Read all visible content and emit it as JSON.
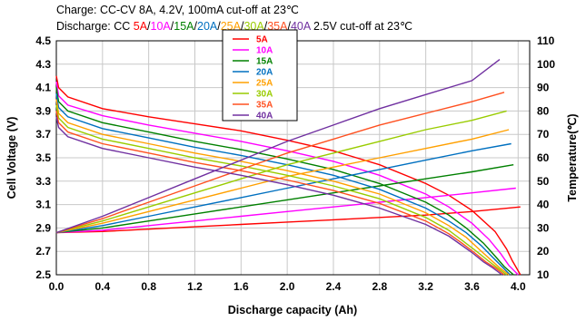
{
  "chart_data": {
    "type": "line",
    "title_line1": "Charge: CC-CV 8A, 4.2V, 100mA cut-off at 23℃",
    "title_line2_prefix": "Discharge: CC ",
    "title_line2_suffix": " 2.5V cut-off at 23℃",
    "xlabel": "Discharge capacity (Ah)",
    "ylabel_left": "Cell Voltage (V)",
    "ylabel_right": "Temperature(℃)",
    "xlim": [
      0,
      4.1
    ],
    "ylim_left": [
      2.5,
      4.5
    ],
    "ylim_right": [
      10,
      110
    ],
    "x_ticks": [
      "0.0",
      "0.4",
      "0.8",
      "1.2",
      "1.6",
      "2.0",
      "2.4",
      "2.8",
      "3.2",
      "3.6",
      "4.0"
    ],
    "y_left_ticks": [
      "2.5",
      "2.7",
      "2.9",
      "3.1",
      "3.3",
      "3.5",
      "3.7",
      "3.9",
      "4.1",
      "4.3",
      "4.5"
    ],
    "y_right_ticks": [
      "10",
      "20",
      "30",
      "40",
      "50",
      "60",
      "70",
      "80",
      "90",
      "100",
      "110"
    ],
    "grid": true,
    "legend_position": "top-center",
    "series": [
      {
        "name": "5A",
        "color": "#ff0000",
        "voltage_x": [
          0,
          0.02,
          0.1,
          0.4,
          0.8,
          1.2,
          1.6,
          2.0,
          2.4,
          2.8,
          3.2,
          3.4,
          3.6,
          3.8,
          3.9,
          3.95,
          4.02
        ],
        "voltage_y": [
          4.2,
          4.1,
          4.02,
          3.92,
          3.85,
          3.79,
          3.73,
          3.65,
          3.56,
          3.44,
          3.28,
          3.18,
          3.05,
          2.87,
          2.72,
          2.62,
          2.5
        ],
        "temp_x": [
          0,
          0.4,
          0.8,
          1.2,
          1.6,
          2.0,
          2.4,
          2.8,
          3.2,
          3.6,
          4.02
        ],
        "temp_y": [
          28,
          28.5,
          29.5,
          30.5,
          31.5,
          32.5,
          33.5,
          34.5,
          35.5,
          37,
          39
        ]
      },
      {
        "name": "10A",
        "color": "#ff00ff",
        "voltage_x": [
          0,
          0.02,
          0.1,
          0.4,
          0.8,
          1.2,
          1.6,
          2.0,
          2.4,
          2.8,
          3.2,
          3.4,
          3.6,
          3.75,
          3.85,
          3.92,
          4.0
        ],
        "voltage_y": [
          4.15,
          4.03,
          3.95,
          3.86,
          3.78,
          3.71,
          3.64,
          3.56,
          3.47,
          3.35,
          3.19,
          3.08,
          2.94,
          2.8,
          2.68,
          2.58,
          2.5
        ],
        "temp_x": [
          0,
          0.4,
          0.8,
          1.2,
          1.6,
          2.0,
          2.4,
          2.8,
          3.2,
          3.6,
          3.98
        ],
        "temp_y": [
          28,
          29,
          31,
          33,
          35,
          37,
          39,
          41,
          43,
          45,
          47
        ]
      },
      {
        "name": "15A",
        "color": "#008000",
        "voltage_x": [
          0,
          0.02,
          0.1,
          0.4,
          0.8,
          1.2,
          1.6,
          2.0,
          2.4,
          2.8,
          3.2,
          3.4,
          3.55,
          3.7,
          3.8,
          3.88,
          3.96
        ],
        "voltage_y": [
          4.1,
          3.98,
          3.9,
          3.8,
          3.72,
          3.64,
          3.57,
          3.49,
          3.4,
          3.28,
          3.12,
          3.01,
          2.9,
          2.77,
          2.66,
          2.57,
          2.5
        ],
        "temp_x": [
          0,
          0.4,
          0.8,
          1.2,
          1.6,
          2.0,
          2.4,
          2.8,
          3.2,
          3.6,
          3.96
        ],
        "temp_y": [
          28,
          30,
          33,
          36,
          39,
          42,
          45,
          48,
          51,
          54,
          57
        ]
      },
      {
        "name": "20A",
        "color": "#0070c0",
        "voltage_x": [
          0,
          0.02,
          0.1,
          0.4,
          0.8,
          1.2,
          1.6,
          2.0,
          2.4,
          2.8,
          3.2,
          3.4,
          3.55,
          3.68,
          3.78,
          3.86,
          3.93
        ],
        "voltage_y": [
          4.05,
          3.93,
          3.85,
          3.75,
          3.67,
          3.59,
          3.52,
          3.44,
          3.35,
          3.23,
          3.07,
          2.96,
          2.86,
          2.75,
          2.65,
          2.57,
          2.5
        ],
        "temp_x": [
          0,
          0.4,
          0.8,
          1.2,
          1.6,
          2.0,
          2.4,
          2.8,
          3.2,
          3.6,
          3.94
        ],
        "temp_y": [
          28,
          31,
          35,
          39,
          43,
          47,
          51,
          55,
          59,
          63,
          66
        ]
      },
      {
        "name": "25A",
        "color": "#ffa000",
        "voltage_x": [
          0,
          0.02,
          0.1,
          0.4,
          0.8,
          1.2,
          1.6,
          2.0,
          2.4,
          2.8,
          3.2,
          3.4,
          3.55,
          3.66,
          3.76,
          3.84,
          3.92
        ],
        "voltage_y": [
          4.0,
          3.88,
          3.8,
          3.7,
          3.62,
          3.54,
          3.47,
          3.39,
          3.3,
          3.19,
          3.03,
          2.92,
          2.82,
          2.72,
          2.63,
          2.56,
          2.5
        ],
        "temp_x": [
          0,
          0.4,
          0.8,
          1.2,
          1.6,
          2.0,
          2.4,
          2.8,
          3.2,
          3.6,
          3.92
        ],
        "temp_y": [
          28,
          32,
          37,
          42,
          47,
          52,
          56,
          60,
          64,
          68,
          72
        ]
      },
      {
        "name": "30A",
        "color": "#99cc00",
        "voltage_x": [
          0,
          0.02,
          0.1,
          0.4,
          0.8,
          1.2,
          1.6,
          2.0,
          2.4,
          2.8,
          3.2,
          3.4,
          3.52,
          3.64,
          3.74,
          3.82,
          3.9
        ],
        "voltage_y": [
          3.95,
          3.84,
          3.76,
          3.66,
          3.58,
          3.5,
          3.43,
          3.35,
          3.26,
          3.15,
          2.99,
          2.88,
          2.79,
          2.7,
          2.62,
          2.56,
          2.5
        ],
        "temp_x": [
          0,
          0.4,
          0.8,
          1.2,
          1.6,
          2.0,
          2.4,
          2.8,
          3.2,
          3.6,
          3.9
        ],
        "temp_y": [
          28,
          33,
          39,
          45,
          51,
          57,
          62,
          67,
          72,
          76,
          80
        ]
      },
      {
        "name": "35A",
        "color": "#ff5020",
        "voltage_x": [
          0,
          0.02,
          0.1,
          0.4,
          0.8,
          1.2,
          1.6,
          2.0,
          2.4,
          2.8,
          3.2,
          3.4,
          3.5,
          3.62,
          3.72,
          3.8,
          3.88
        ],
        "voltage_y": [
          3.9,
          3.8,
          3.72,
          3.62,
          3.54,
          3.46,
          3.39,
          3.31,
          3.22,
          3.11,
          2.96,
          2.85,
          2.78,
          2.69,
          2.61,
          2.56,
          2.5
        ],
        "temp_x": [
          0,
          0.4,
          0.8,
          1.2,
          1.6,
          2.0,
          2.4,
          2.8,
          3.2,
          3.6,
          3.88
        ],
        "temp_y": [
          28,
          34,
          41,
          48,
          55,
          62,
          68,
          74,
          79,
          84,
          88
        ]
      },
      {
        "name": "40A",
        "color": "#7030a0",
        "voltage_x": [
          0,
          0.02,
          0.1,
          0.4,
          0.8,
          1.2,
          1.6,
          2.0,
          2.4,
          2.8,
          3.2,
          3.4,
          3.5,
          3.6,
          3.7,
          3.78,
          3.86
        ],
        "voltage_y": [
          3.85,
          3.76,
          3.68,
          3.58,
          3.5,
          3.42,
          3.35,
          3.27,
          3.18,
          3.07,
          2.93,
          2.83,
          2.76,
          2.69,
          2.61,
          2.56,
          2.5
        ],
        "temp_x": [
          0,
          0.4,
          0.8,
          1.2,
          1.6,
          2.0,
          2.4,
          2.8,
          3.2,
          3.6,
          3.84
        ],
        "temp_y": [
          28,
          35,
          43,
          51,
          59,
          67,
          74,
          81,
          87,
          93,
          102
        ]
      }
    ]
  }
}
